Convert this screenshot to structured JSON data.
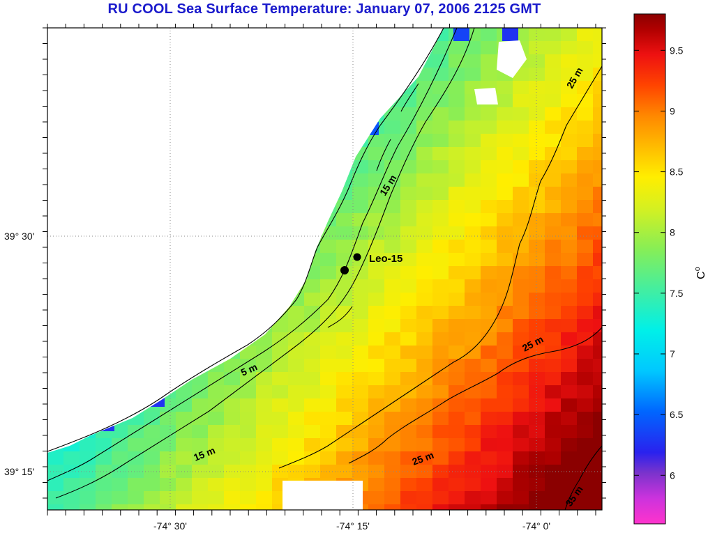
{
  "title": "RU COOL  Sea Surface Temperature:  January 07, 2006 2125 GMT",
  "lat_labels": [
    "39° 30'",
    "39° 15'"
  ],
  "lon_labels": [
    "-74° 30'",
    "-74° 15'",
    "-74° 0'"
  ],
  "station_label": "Leo-15",
  "contour_labels": [
    "15 m",
    "5 m",
    "15 m",
    "25 m",
    "25 m",
    "25 m",
    "35 m"
  ],
  "colorbar": {
    "unit": "C",
    "unit_superscript": "o",
    "ticks": [
      "9.5",
      "9",
      "8.5",
      "8",
      "7.5",
      "7",
      "6.5",
      "6"
    ],
    "range": [
      5.6,
      9.8
    ]
  },
  "colors": {
    "title": "#1a1acc",
    "land": "#ffffff",
    "coastline": "#000000"
  }
}
